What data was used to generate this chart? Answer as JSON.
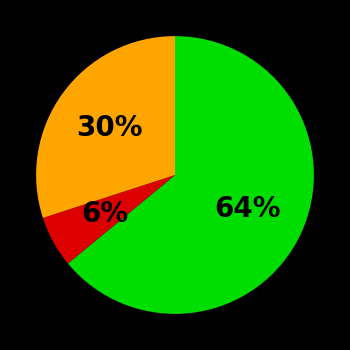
{
  "slices": [
    64,
    6,
    30
  ],
  "colors": [
    "#00dd00",
    "#dd0000",
    "#ffa500"
  ],
  "labels": [
    "64%",
    "6%",
    "30%"
  ],
  "background_color": "#000000",
  "text_color": "#000000",
  "font_size": 20,
  "font_weight": "bold",
  "startangle": 90,
  "label_r": 0.58
}
